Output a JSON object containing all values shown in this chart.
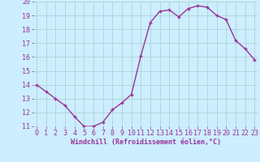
{
  "x": [
    0,
    1,
    2,
    3,
    4,
    5,
    6,
    7,
    8,
    9,
    10,
    11,
    12,
    13,
    14,
    15,
    16,
    17,
    18,
    19,
    20,
    21,
    22,
    23
  ],
  "y": [
    14.0,
    13.5,
    13.0,
    12.5,
    11.7,
    11.0,
    11.0,
    11.3,
    12.2,
    12.7,
    13.3,
    16.1,
    18.5,
    19.3,
    19.4,
    18.9,
    19.5,
    19.7,
    19.6,
    19.0,
    18.7,
    17.2,
    16.6,
    15.8
  ],
  "xlabel": "Windchill (Refroidissement éolien,°C)",
  "ylim": [
    11,
    20
  ],
  "xlim": [
    -0.3,
    23.3
  ],
  "yticks": [
    11,
    12,
    13,
    14,
    15,
    16,
    17,
    18,
    19,
    20
  ],
  "xticks": [
    0,
    1,
    2,
    3,
    4,
    5,
    6,
    7,
    8,
    9,
    10,
    11,
    12,
    13,
    14,
    15,
    16,
    17,
    18,
    19,
    20,
    21,
    22,
    23
  ],
  "line_color": "#993399",
  "marker": "+",
  "marker_size": 3,
  "bg_color": "#cceeff",
  "grid_color": "#aacccc",
  "tick_label_color": "#993399",
  "xlabel_color": "#993399",
  "xlabel_fontsize": 6,
  "tick_fontsize": 6,
  "line_width": 1.0
}
